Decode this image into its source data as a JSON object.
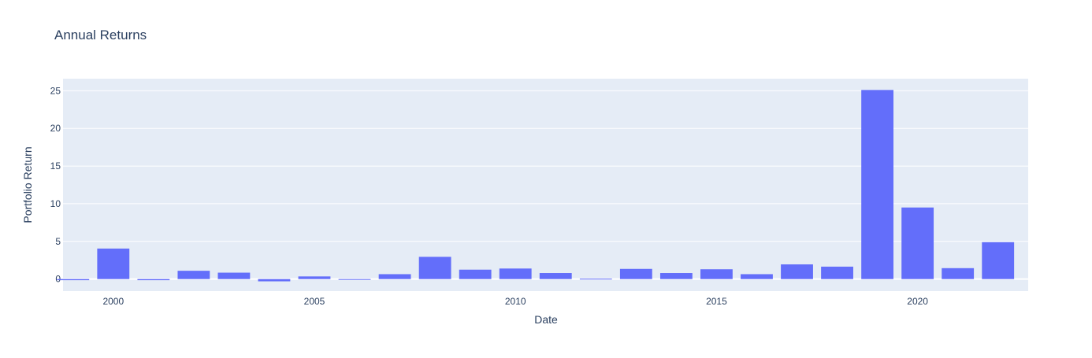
{
  "chart_data": {
    "type": "bar",
    "title": "Annual Returns",
    "xlabel": "Date",
    "ylabel": "Portfolio Return",
    "x": [
      1999,
      2000,
      2001,
      2002,
      2003,
      2004,
      2005,
      2006,
      2007,
      2008,
      2009,
      2010,
      2011,
      2012,
      2013,
      2014,
      2015,
      2016,
      2017,
      2018,
      2019,
      2020,
      2021,
      2022
    ],
    "values": [
      -0.15,
      4.05,
      -0.15,
      1.1,
      0.85,
      -0.3,
      0.35,
      -0.1,
      0.65,
      2.95,
      1.25,
      1.4,
      0.8,
      0.05,
      1.35,
      0.8,
      1.3,
      0.65,
      1.95,
      1.65,
      25.1,
      9.5,
      1.45,
      4.9
    ],
    "x_ticks": [
      "2000",
      "2005",
      "2010",
      "2015",
      "2020"
    ],
    "y_ticks": [
      "0",
      "5",
      "10",
      "15",
      "20",
      "25"
    ],
    "xlim": [
      1998.75,
      2022.75
    ],
    "ylim": [
      -1.6,
      26.6
    ],
    "grid": true,
    "colors": {
      "bar": "#636efa",
      "plot_bg": "#e5ecf6",
      "grid": "#ffffff",
      "title": "#2a3f5f",
      "tick": "#2a3f5f"
    }
  }
}
